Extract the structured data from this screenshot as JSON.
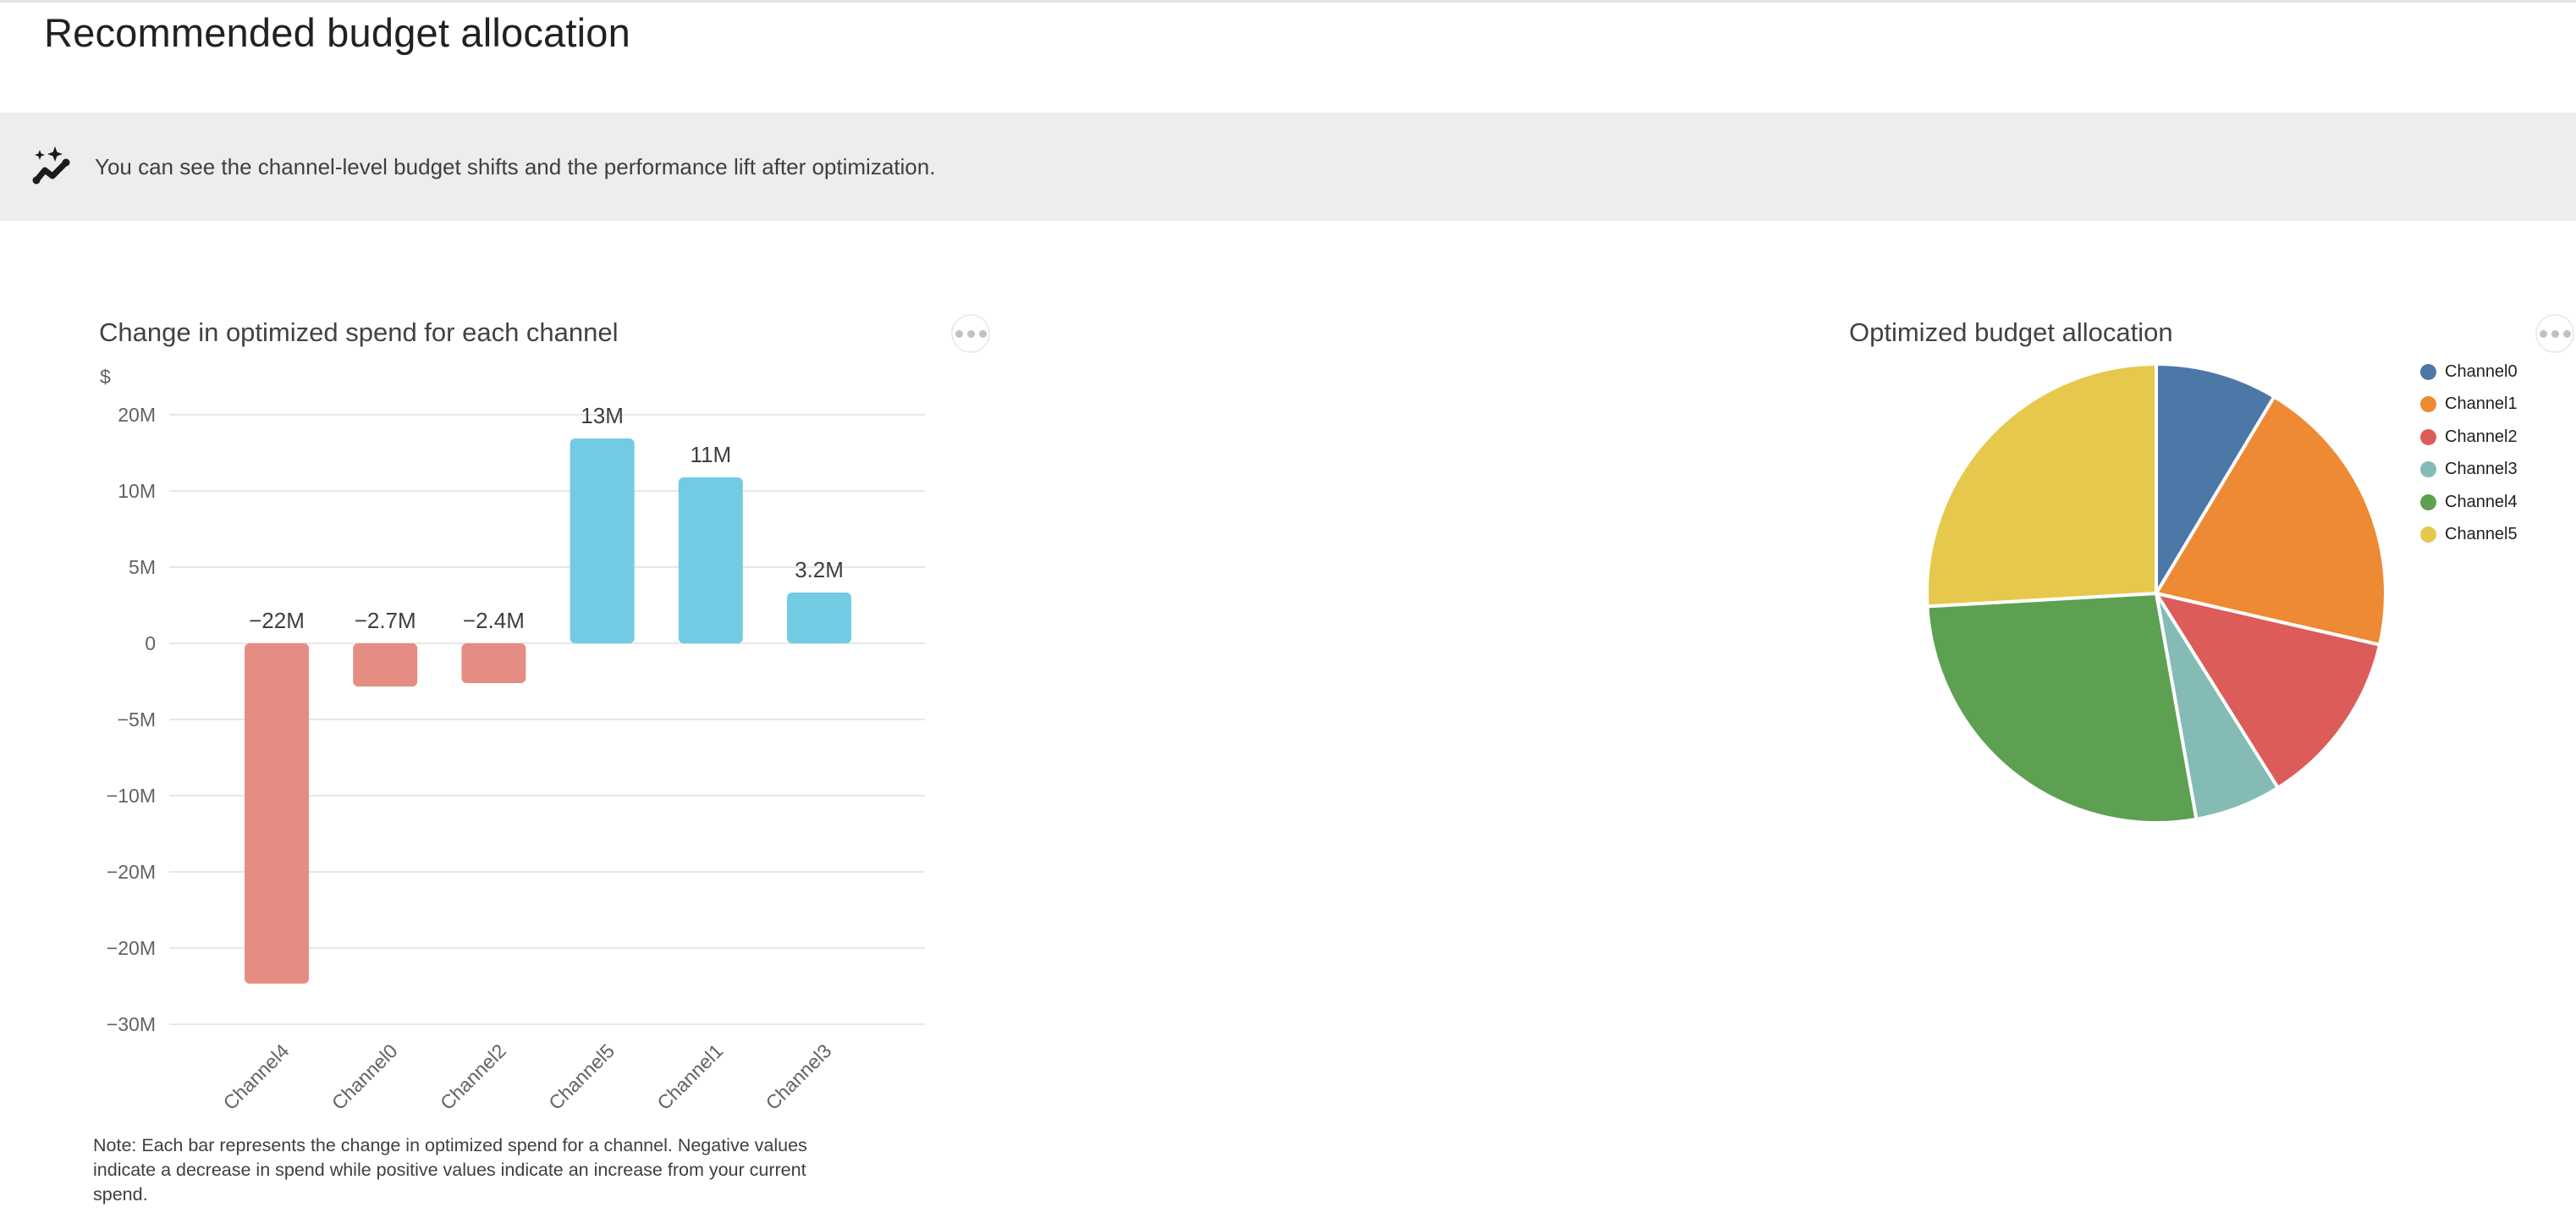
{
  "page": {
    "title": "Recommended budget allocation",
    "banner": {
      "icon": "auto-graph-icon",
      "text": "You can see the channel-level budget shifts and the performance lift after optimization."
    }
  },
  "colors": {
    "banner_bg": "#ededed",
    "grid": "#e7e7e7",
    "axis_text": "#5f6368",
    "value_text": "#3c4043",
    "bar_positive": "#73CAE3",
    "bar_negative": "#E58D83"
  },
  "more_menu": {
    "tooltip": "more options"
  },
  "chart_data": [
    {
      "type": "bar",
      "title": "Change in optimized spend for each channel",
      "ylabel": "$",
      "y_tick_labels": [
        "20M",
        "10M",
        "5M",
        "0",
        "−5M",
        "−10M",
        "−20M",
        "−20M",
        "−30M"
      ],
      "categories": [
        "Channel4",
        "Channel0",
        "Channel2",
        "Channel5",
        "Channel1",
        "Channel3"
      ],
      "values": [
        -22,
        -2.7,
        -2.4,
        13,
        11,
        3.2
      ],
      "value_labels": [
        "−22M",
        "−2.7M",
        "−2.4M",
        "13M",
        "11M",
        "3.2M"
      ],
      "negative_color": "#E58D83",
      "positive_color": "#73CAE3",
      "grid": true,
      "note": "Note: Each bar represents the change in optimized spend for a channel. Negative values indicate a decrease in spend while positive values indicate an increase from your current spend."
    },
    {
      "type": "pie",
      "title": "Optimized budget allocation",
      "legend_position": "right",
      "series": [
        {
          "name": "Channel0",
          "percent": 8.6,
          "color": "#4C78A8"
        },
        {
          "name": "Channel1",
          "percent": 20.0,
          "color": "#ED8A33"
        },
        {
          "name": "Channel2",
          "percent": 12.5,
          "color": "#DC5C5A"
        },
        {
          "name": "Channel3",
          "percent": 6.1,
          "color": "#84BCB5"
        },
        {
          "name": "Channel4",
          "percent": 26.9,
          "color": "#5DA052"
        },
        {
          "name": "Channel5",
          "percent": 25.9,
          "color": "#E6C94C"
        }
      ]
    }
  ]
}
